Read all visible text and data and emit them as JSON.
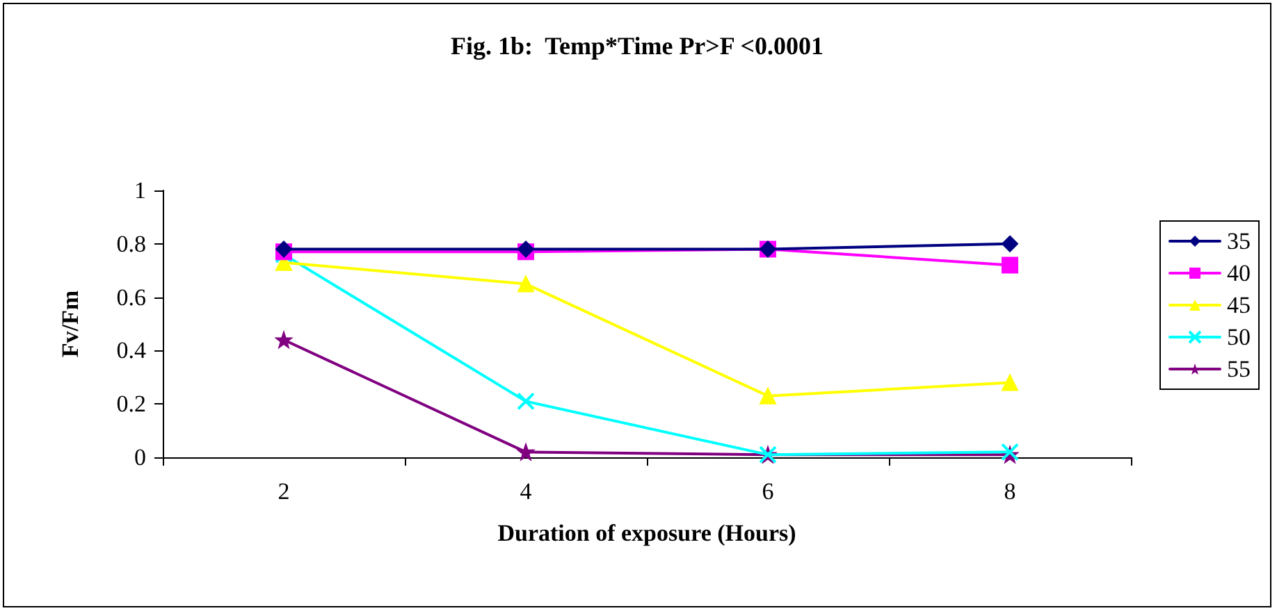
{
  "chart_data": {
    "type": "line",
    "title": "Fig. 1b:  Temp*Time Pr>F <0.0001",
    "xlabel": "Duration of exposure (Hours)",
    "ylabel": "Fv/Fm",
    "categories": [
      "2",
      "4",
      "6",
      "8"
    ],
    "series": [
      {
        "name": "35",
        "color": "#000080",
        "marker": "diamond",
        "values": [
          0.78,
          0.78,
          0.78,
          0.8
        ]
      },
      {
        "name": "40",
        "color": "#ff00ff",
        "marker": "square",
        "values": [
          0.77,
          0.77,
          0.78,
          0.72
        ]
      },
      {
        "name": "45",
        "color": "#ffff00",
        "marker": "triangle",
        "values": [
          0.73,
          0.65,
          0.23,
          0.28
        ]
      },
      {
        "name": "50",
        "color": "#00ffff",
        "marker": "cross",
        "values": [
          0.76,
          0.21,
          0.01,
          0.02
        ]
      },
      {
        "name": "55",
        "color": "#800080",
        "marker": "star",
        "values": [
          0.44,
          0.02,
          0.01,
          0.01
        ]
      }
    ],
    "ylim": [
      0,
      1
    ],
    "yticks": [
      0,
      0.2,
      0.4,
      0.6,
      0.8,
      1
    ],
    "grid": false,
    "legend": "right",
    "line_style": "solid"
  }
}
